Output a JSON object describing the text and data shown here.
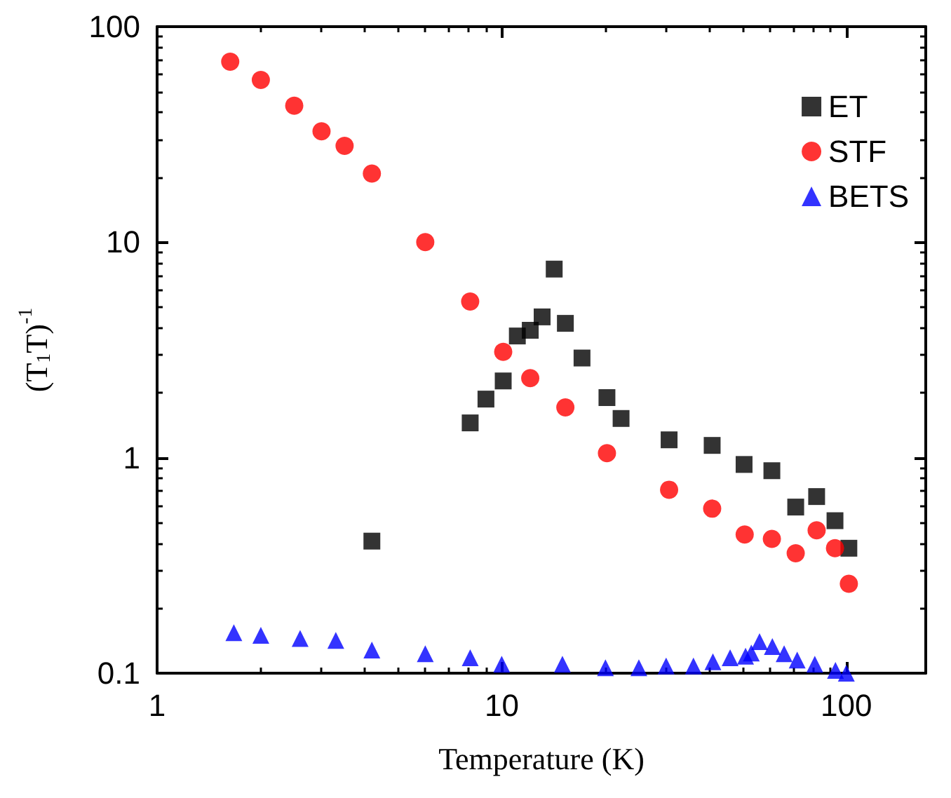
{
  "chart_data": {
    "type": "scatter",
    "xlabel": "Temperature (K)",
    "ylabel": "(T$_{1}$T)$^{-1}$",
    "log": "xy",
    "xlim": [
      1,
      170
    ],
    "xticks": [
      1,
      10,
      100
    ],
    "ylim": [
      0.1,
      100
    ],
    "yticks": [
      0.1,
      1,
      10,
      100
    ],
    "legend": "top right",
    "grid": false,
    "series": [
      {
        "name": "ET",
        "color": "#000000",
        "marker": "square",
        "x": [
          4.2,
          8.1,
          9,
          10.1,
          11.1,
          12.1,
          13.1,
          14.2,
          15.3,
          17.1,
          20.2,
          22.2,
          30.6,
          40.8,
          50.5,
          60.8,
          71.3,
          82,
          92.7,
          101.7
        ],
        "values": [
          0.41,
          1.45,
          1.87,
          2.27,
          3.67,
          3.9,
          4.5,
          7.5,
          4.2,
          2.9,
          1.9,
          1.52,
          1.21,
          1.14,
          0.93,
          0.87,
          0.59,
          0.66,
          0.51,
          0.38
        ]
      },
      {
        "name": "STF",
        "color": "#ff0000",
        "marker": "circle",
        "x": [
          1.63,
          2,
          2.5,
          3,
          3.5,
          4.2,
          6,
          8.1,
          10.1,
          12.1,
          15.3,
          20.2,
          30.6,
          40.8,
          50.7,
          60.8,
          71.3,
          82,
          92.7,
          101.7
        ],
        "values": [
          68.8,
          56.6,
          43,
          32.7,
          28,
          20.8,
          10,
          5.3,
          3.1,
          2.34,
          1.71,
          1.05,
          0.71,
          0.58,
          0.44,
          0.42,
          0.36,
          0.46,
          0.38,
          0.26
        ]
      },
      {
        "name": "BETS",
        "color": "#0000ff",
        "marker": "triangle",
        "x": [
          1.67,
          2,
          2.6,
          3.3,
          4.2,
          6,
          8.1,
          10,
          15,
          20,
          25,
          30,
          36,
          41,
          46,
          51,
          53,
          56,
          61,
          66,
          72,
          81,
          93,
          100
        ],
        "values": [
          0.154,
          0.15,
          0.145,
          0.142,
          0.128,
          0.123,
          0.118,
          0.11,
          0.11,
          0.106,
          0.106,
          0.108,
          0.108,
          0.113,
          0.118,
          0.12,
          0.124,
          0.14,
          0.133,
          0.123,
          0.115,
          0.11,
          0.103,
          0.1
        ]
      }
    ]
  }
}
